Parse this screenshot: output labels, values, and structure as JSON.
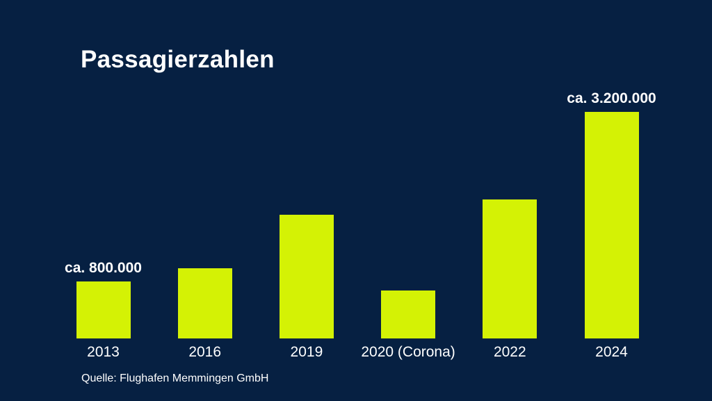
{
  "chart": {
    "title": "Passagierzahlen",
    "source": "Quelle: Flughafen Memmingen GmbH"
  },
  "chart_data": {
    "type": "bar",
    "title": "Passagierzahlen",
    "categories": [
      "2013",
      "2016",
      "2019",
      "2020 (Corona)",
      "2022",
      "2024"
    ],
    "values": [
      800000,
      990000,
      1750000,
      680000,
      1960000,
      3200000
    ],
    "annotations": [
      {
        "category": "2013",
        "label": "ca. 800.000"
      },
      {
        "category": "2024",
        "label": "ca. 3.200.000"
      }
    ],
    "xlabel": "",
    "ylabel": "",
    "ylim": [
      0,
      3400000
    ],
    "grid": false,
    "legend": false,
    "source": "Quelle: Flughafen Memmingen GmbH",
    "colors": {
      "background": "#062042",
      "bar": "#d4f205",
      "text": "#ffffff"
    }
  }
}
